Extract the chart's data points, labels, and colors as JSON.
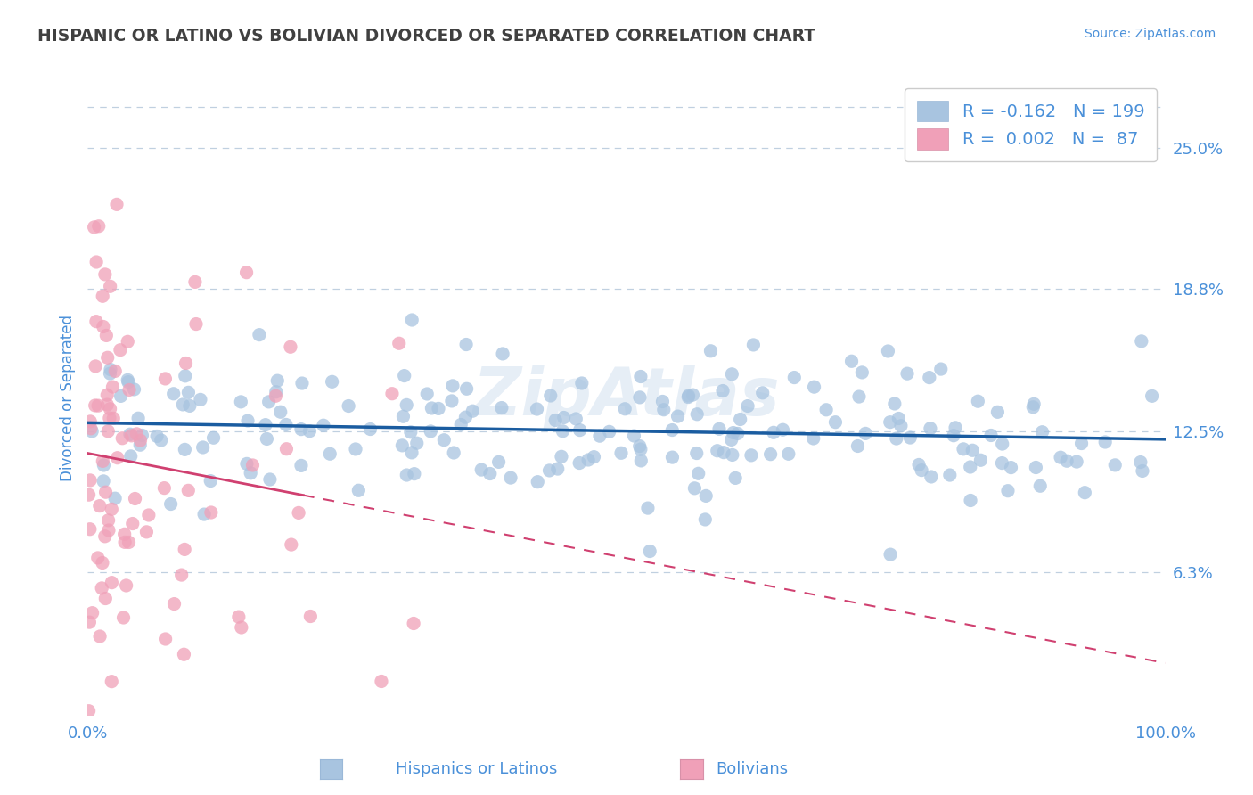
{
  "title": "HISPANIC OR LATINO VS BOLIVIAN DIVORCED OR SEPARATED CORRELATION CHART",
  "source_text": "Source: ZipAtlas.com",
  "ylabel": "Divorced or Separated",
  "legend_labels": [
    "Hispanics or Latinos",
    "Bolivians"
  ],
  "r_values": [
    -0.162,
    0.002
  ],
  "n_values": [
    199,
    87
  ],
  "blue_fill": "#a8c4e0",
  "blue_line_color": "#1a5ca0",
  "pink_fill": "#f0a0b8",
  "pink_line_color": "#d04070",
  "axis_label_color": "#4a90d9",
  "title_color": "#404040",
  "background_color": "#ffffff",
  "grid_color": "#c0d0e0",
  "y_tick_labels": [
    "6.3%",
    "12.5%",
    "18.8%",
    "25.0%"
  ],
  "y_tick_values": [
    0.063,
    0.125,
    0.188,
    0.25
  ],
  "ylim": [
    0.0,
    0.28
  ],
  "watermark": "ZipAtlas",
  "seed_blue": 10,
  "seed_pink": 7
}
